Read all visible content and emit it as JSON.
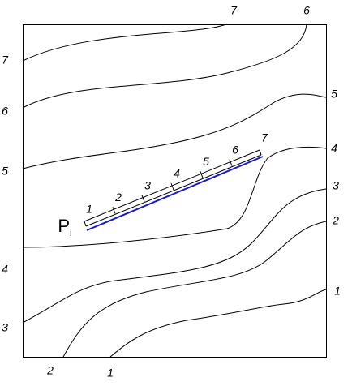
{
  "contour_labels": {
    "top": [
      "7",
      "6"
    ],
    "left": [
      "7",
      "6",
      "5",
      "4",
      "3"
    ],
    "right": [
      "5",
      "4",
      "3",
      "2",
      "1"
    ],
    "bottom": [
      "2",
      "1"
    ]
  },
  "ruler": {
    "labels": [
      "1",
      "2",
      "3",
      "4",
      "5",
      "6",
      "7"
    ]
  },
  "point": {
    "label": "P",
    "subscript": "i"
  }
}
